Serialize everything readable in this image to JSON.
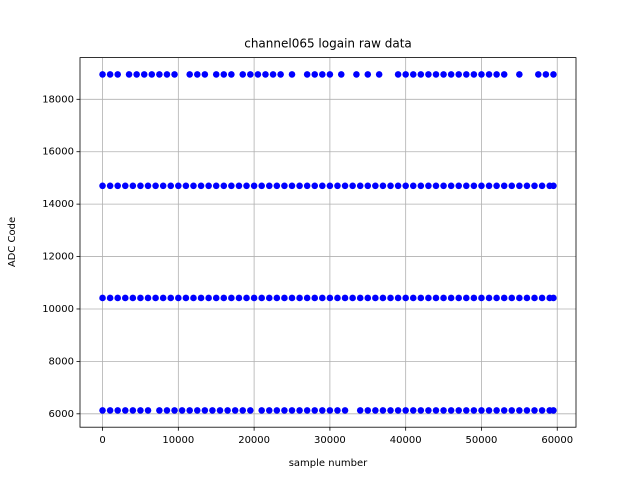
{
  "chart_data": {
    "type": "scatter",
    "title": "channel065 logain raw data",
    "x_label": "sample number",
    "y_label": "ADC Code",
    "xlim": [
      -2975,
      62475
    ],
    "ylim": [
      5489,
      19591
    ],
    "xticks": [
      0,
      10000,
      20000,
      30000,
      40000,
      50000,
      60000
    ],
    "yticks": [
      6000,
      8000,
      10000,
      12000,
      14000,
      16000,
      18000
    ],
    "grid": true,
    "series": [
      {
        "color": "#0000ff",
        "x": [
          0,
          1000,
          2000,
          3500,
          4500,
          5500,
          6500,
          7500,
          8500,
          9500,
          11500,
          12500,
          13500,
          15000,
          16000,
          17000,
          18500,
          19500,
          20500,
          21500,
          22500,
          23500,
          25000,
          27000,
          28000,
          29000,
          30000,
          31500,
          33500,
          35000,
          36500,
          39000,
          40000,
          41000,
          42000,
          43000,
          44000,
          45000,
          46000,
          47000,
          48000,
          49000,
          50000,
          51000,
          52000,
          53000,
          55000,
          57500,
          58500,
          59500
        ],
        "values": [
          18950,
          18950,
          18950,
          18950,
          18950,
          18950,
          18950,
          18950,
          18950,
          18950,
          18950,
          18950,
          18950,
          18950,
          18950,
          18950,
          18950,
          18950,
          18950,
          18950,
          18950,
          18950,
          18950,
          18950,
          18950,
          18950,
          18950,
          18950,
          18950,
          18950,
          18950,
          18950,
          18950,
          18950,
          18950,
          18950,
          18950,
          18950,
          18950,
          18950,
          18950,
          18950,
          18950,
          18950,
          18950,
          18950,
          18950,
          18950,
          18950,
          18950
        ]
      },
      {
        "color": "#0000ff",
        "x": [
          0,
          1000,
          2000,
          3000,
          4000,
          5000,
          6000,
          7000,
          8000,
          9000,
          10000,
          11000,
          12000,
          13000,
          14000,
          15000,
          16000,
          17000,
          18000,
          19000,
          20000,
          21000,
          22000,
          23000,
          24000,
          25000,
          26000,
          27000,
          28000,
          29000,
          30000,
          31000,
          32000,
          33000,
          34000,
          35000,
          36000,
          37000,
          38000,
          39000,
          40000,
          41000,
          42000,
          43000,
          44000,
          45000,
          46000,
          47000,
          48000,
          49000,
          50000,
          51000,
          52000,
          53000,
          54000,
          55000,
          56000,
          57000,
          58000,
          59000,
          59500
        ],
        "values": [
          14700,
          14700,
          14700,
          14700,
          14700,
          14700,
          14700,
          14700,
          14700,
          14700,
          14700,
          14700,
          14700,
          14700,
          14700,
          14700,
          14700,
          14700,
          14700,
          14700,
          14700,
          14700,
          14700,
          14700,
          14700,
          14700,
          14700,
          14700,
          14700,
          14700,
          14700,
          14700,
          14700,
          14700,
          14700,
          14700,
          14700,
          14700,
          14700,
          14700,
          14700,
          14700,
          14700,
          14700,
          14700,
          14700,
          14700,
          14700,
          14700,
          14700,
          14700,
          14700,
          14700,
          14700,
          14700,
          14700,
          14700,
          14700,
          14700,
          14700,
          14700
        ]
      },
      {
        "color": "#0000ff",
        "x": [
          0,
          1000,
          2000,
          3000,
          4000,
          5000,
          6000,
          7000,
          8000,
          9000,
          10000,
          11000,
          12000,
          13000,
          14000,
          15000,
          16000,
          17000,
          18000,
          19000,
          20000,
          21000,
          22000,
          23000,
          24000,
          25000,
          26000,
          27000,
          28000,
          29000,
          30000,
          31000,
          32000,
          33000,
          34000,
          35000,
          36000,
          37000,
          38000,
          39000,
          40000,
          41000,
          42000,
          43000,
          44000,
          45000,
          46000,
          47000,
          48000,
          49000,
          50000,
          51000,
          52000,
          53000,
          54000,
          55000,
          56000,
          57000,
          58000,
          59000,
          59500
        ],
        "values": [
          10420,
          10420,
          10420,
          10420,
          10420,
          10420,
          10420,
          10420,
          10420,
          10420,
          10420,
          10420,
          10420,
          10420,
          10420,
          10420,
          10420,
          10420,
          10420,
          10420,
          10420,
          10420,
          10420,
          10420,
          10420,
          10420,
          10420,
          10420,
          10420,
          10420,
          10420,
          10420,
          10420,
          10420,
          10420,
          10420,
          10420,
          10420,
          10420,
          10420,
          10420,
          10420,
          10420,
          10420,
          10420,
          10420,
          10420,
          10420,
          10420,
          10420,
          10420,
          10420,
          10420,
          10420,
          10420,
          10420,
          10420,
          10420,
          10420,
          10420,
          10420
        ]
      },
      {
        "color": "#0000ff",
        "x": [
          0,
          1000,
          2000,
          3000,
          4000,
          5000,
          6000,
          7500,
          8500,
          9500,
          10500,
          11500,
          12500,
          13500,
          14500,
          15500,
          16500,
          17500,
          18500,
          19500,
          21000,
          22000,
          23000,
          24000,
          25000,
          26000,
          27000,
          28000,
          29000,
          30000,
          31000,
          32000,
          34000,
          35000,
          36000,
          37000,
          38000,
          39000,
          40000,
          41000,
          42000,
          43000,
          44000,
          45000,
          46000,
          47000,
          48000,
          49000,
          50000,
          51000,
          52000,
          53000,
          54000,
          55000,
          56000,
          57000,
          58000,
          59000,
          59500
        ],
        "values": [
          6130,
          6130,
          6130,
          6130,
          6130,
          6130,
          6130,
          6130,
          6130,
          6130,
          6130,
          6130,
          6130,
          6130,
          6130,
          6130,
          6130,
          6130,
          6130,
          6130,
          6130,
          6130,
          6130,
          6130,
          6130,
          6130,
          6130,
          6130,
          6130,
          6130,
          6130,
          6130,
          6130,
          6130,
          6130,
          6130,
          6130,
          6130,
          6130,
          6130,
          6130,
          6130,
          6130,
          6130,
          6130,
          6130,
          6130,
          6130,
          6130,
          6130,
          6130,
          6130,
          6130,
          6130,
          6130,
          6130,
          6130,
          6130,
          6130
        ]
      }
    ]
  }
}
